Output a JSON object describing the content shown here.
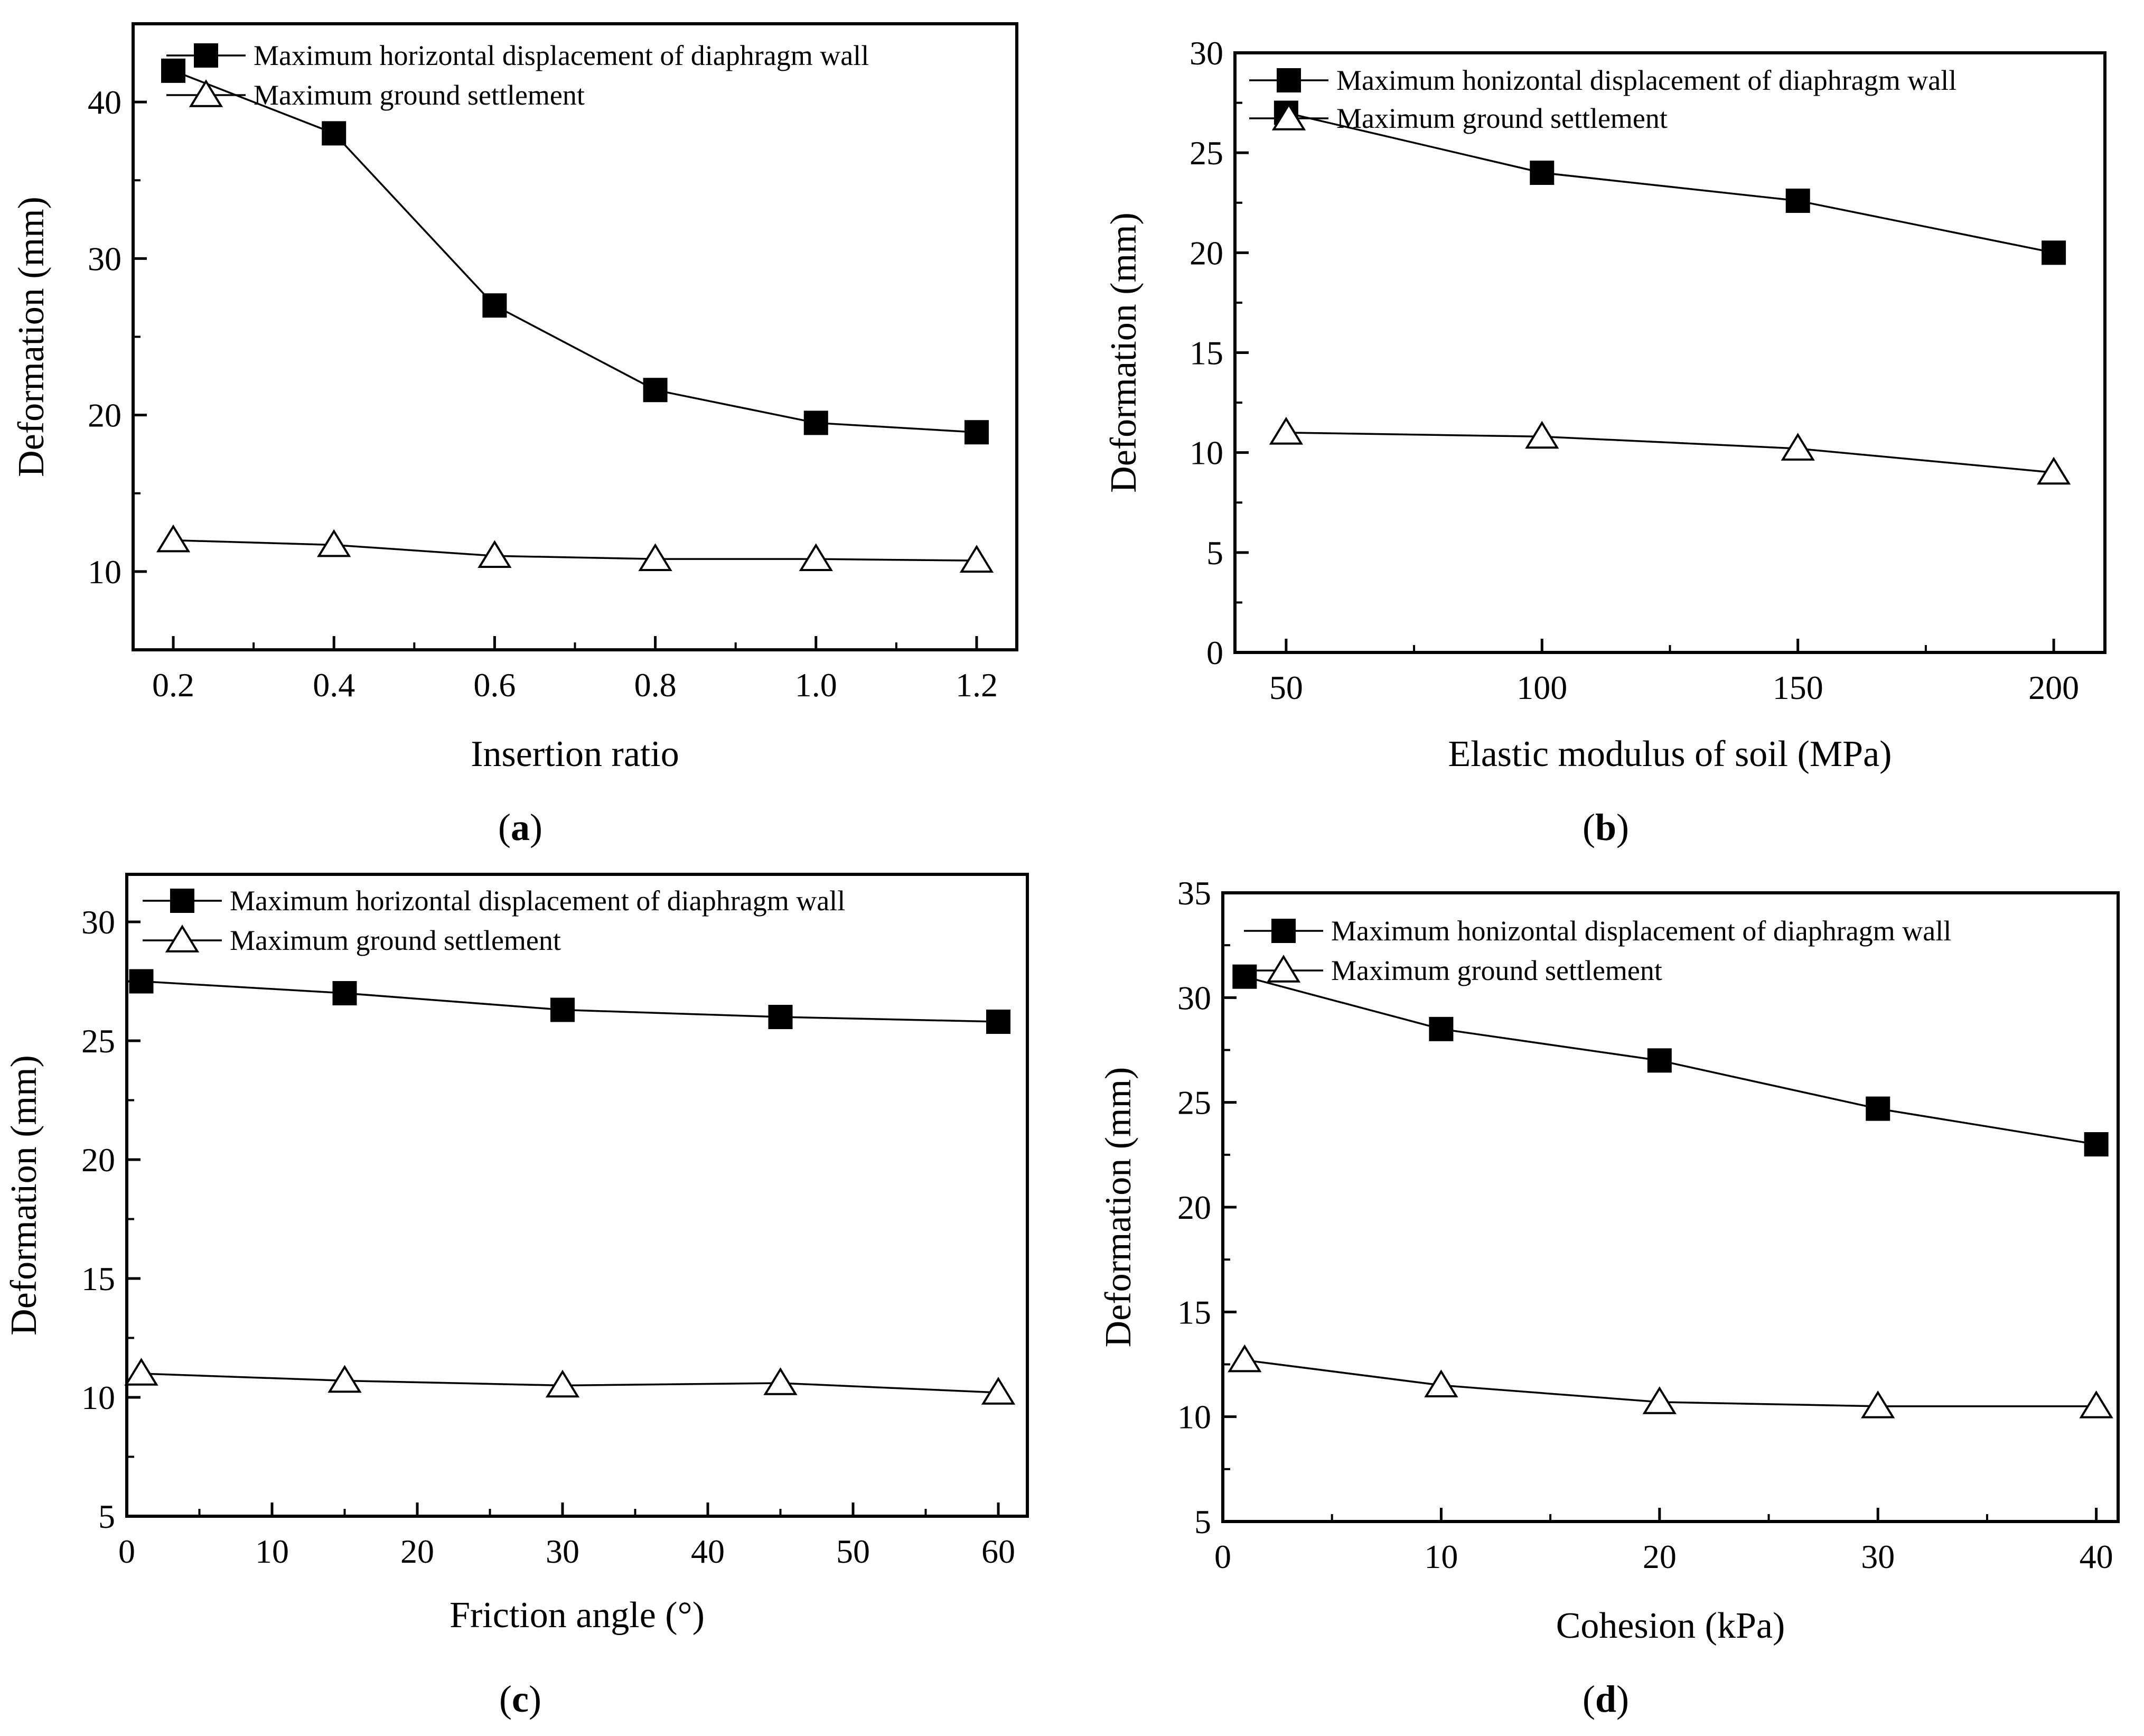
{
  "chart_data": [
    {
      "type": "line",
      "caption_letter": "a",
      "xlabel": "Insertion ratio",
      "ylabel": "Deformation (mm)",
      "xlim": [
        0.15,
        1.25
      ],
      "ylim": [
        5,
        45
      ],
      "xticks": [
        0.2,
        0.4,
        0.6,
        0.8,
        1.0,
        1.2
      ],
      "xtick_labels": [
        "0.2",
        "0.4",
        "0.6",
        "0.8",
        "1.0",
        "1.2"
      ],
      "yticks": [
        10,
        20,
        30,
        40
      ],
      "ytick_labels": [
        "10",
        "20",
        "30",
        "40"
      ],
      "legend_position": "top-right",
      "x": [
        0.2,
        0.4,
        0.6,
        0.8,
        1.0,
        1.2
      ],
      "series": [
        {
          "name": "Maximum horizontal displacement of diaphragm wall",
          "marker": "square-filled",
          "values": [
            42,
            38,
            27,
            21.6,
            19.5,
            18.9
          ]
        },
        {
          "name": "Maximum ground settlement",
          "marker": "triangle-open",
          "values": [
            12,
            11.7,
            11,
            10.8,
            10.8,
            10.7
          ]
        }
      ]
    },
    {
      "type": "line",
      "caption_letter": "b",
      "xlabel": "Elastic modulus of soil (MPa)",
      "ylabel": "Deformation (mm)",
      "xlim": [
        40,
        210
      ],
      "ylim": [
        0,
        30
      ],
      "xticks": [
        50,
        100,
        150,
        200
      ],
      "xtick_labels": [
        "50",
        "100",
        "150",
        "200"
      ],
      "yticks": [
        0,
        5,
        10,
        15,
        20,
        25,
        30
      ],
      "ytick_labels": [
        "0",
        "5",
        "10",
        "15",
        "20",
        "25",
        "30"
      ],
      "legend_position": "top-right",
      "x": [
        50,
        100,
        150,
        200
      ],
      "series": [
        {
          "name": "Maximum honizontal displacement of diaphragm wall",
          "marker": "square-filled",
          "values": [
            27,
            24,
            22.6,
            20
          ]
        },
        {
          "name": "Maximum ground settlement",
          "marker": "triangle-open",
          "values": [
            11,
            10.8,
            10.2,
            9
          ]
        }
      ]
    },
    {
      "type": "line",
      "caption_letter": "c",
      "xlabel": "Friction angle (°)",
      "ylabel": "Deformation (mm)",
      "xlim": [
        0,
        62
      ],
      "ylim": [
        5,
        32
      ],
      "xticks": [
        0,
        10,
        20,
        30,
        40,
        50,
        60
      ],
      "xtick_labels": [
        "0",
        "10",
        "20",
        "30",
        "40",
        "50",
        "60"
      ],
      "yticks": [
        5,
        10,
        15,
        20,
        25,
        30
      ],
      "ytick_labels": [
        "5",
        "10",
        "15",
        "20",
        "25",
        "30"
      ],
      "legend_position": "top-right",
      "x": [
        1,
        15,
        30,
        45,
        60
      ],
      "series": [
        {
          "name": "Maximum horizontal displacement of diaphragm wall",
          "marker": "square-filled",
          "values": [
            27.5,
            27,
            26.3,
            26,
            25.8
          ]
        },
        {
          "name": "Maximum ground settlement",
          "marker": "triangle-open",
          "values": [
            11,
            10.7,
            10.5,
            10.6,
            10.2
          ]
        }
      ]
    },
    {
      "type": "line",
      "caption_letter": "d",
      "xlabel": "Cohesion (kPa)",
      "ylabel": "Deformation (mm)",
      "xlim": [
        0,
        41
      ],
      "ylim": [
        5,
        35
      ],
      "xticks": [
        0,
        10,
        20,
        30,
        40
      ],
      "xtick_labels": [
        "0",
        "10",
        "20",
        "30",
        "40"
      ],
      "yticks": [
        5,
        10,
        15,
        20,
        25,
        30,
        35
      ],
      "ytick_labels": [
        "5",
        "10",
        "15",
        "20",
        "25",
        "30",
        "35"
      ],
      "legend_position": "top-right",
      "x": [
        1,
        10,
        20,
        30,
        40
      ],
      "series": [
        {
          "name": "Maximum honizontal displacement of diaphragm wall",
          "marker": "square-filled",
          "values": [
            31,
            28.5,
            27,
            24.7,
            23
          ]
        },
        {
          "name": "Maximum ground settlement",
          "marker": "triangle-open",
          "values": [
            12.7,
            11.5,
            10.7,
            10.5,
            10.5
          ]
        }
      ]
    }
  ]
}
